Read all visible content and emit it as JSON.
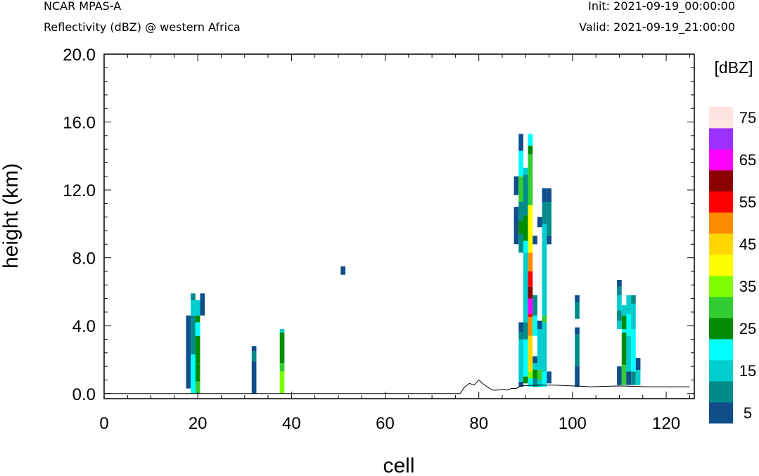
{
  "header": {
    "left_line1": "NCAR MPAS-A",
    "left_line2": "Reflectivity (dBZ) @ western Africa",
    "right_line1": "Init: 2021-09-19_00:00:00",
    "right_line2": "Valid: 2021-09-19_21:00:00"
  },
  "chart_data": {
    "type": "heatmap",
    "title": "Reflectivity (dBZ) @ western Africa",
    "xlabel": "cell",
    "ylabel": "height (km)",
    "xlim": [
      0,
      126
    ],
    "ylim": [
      -0.3,
      20.0
    ],
    "xticks": [
      0,
      20,
      40,
      60,
      80,
      100,
      120
    ],
    "xtick_labels": [
      "0",
      "20",
      "40",
      "60",
      "80",
      "100",
      "120"
    ],
    "yticks": [
      0,
      4,
      8,
      12,
      16,
      20
    ],
    "ytick_labels": [
      "0.0",
      "4.0",
      "8.0",
      "12.0",
      "16.0",
      "20.0"
    ],
    "colorbar": {
      "unit": "[dBZ]",
      "levels": [
        5,
        10,
        15,
        20,
        25,
        30,
        35,
        40,
        45,
        50,
        55,
        60,
        65,
        70,
        75
      ],
      "labels": [
        "5",
        "15",
        "25",
        "35",
        "45",
        "55",
        "65",
        "75"
      ],
      "colors": [
        "#104e8b",
        "#008b8b",
        "#00cdcd",
        "#00ffff",
        "#008b00",
        "#32cd32",
        "#7fff00",
        "#ffff00",
        "#ffd700",
        "#ff8c00",
        "#ff0000",
        "#8b0000",
        "#ff00ff",
        "#9b30ff",
        "#ffe4e1"
      ]
    },
    "terrain": [
      [
        0,
        0
      ],
      [
        76,
        0
      ],
      [
        77,
        0.4
      ],
      [
        78,
        0.6
      ],
      [
        79,
        0.5
      ],
      [
        80,
        0.8
      ],
      [
        81,
        0.55
      ],
      [
        82,
        0.35
      ],
      [
        83,
        0.2
      ],
      [
        84,
        0.2
      ],
      [
        85,
        0.25
      ],
      [
        86,
        0.2
      ],
      [
        87,
        0.3
      ],
      [
        88,
        0.3
      ],
      [
        89,
        0.45
      ],
      [
        92,
        0.5
      ],
      [
        96,
        0.5
      ],
      [
        100,
        0.45
      ],
      [
        104,
        0.4
      ],
      [
        110,
        0.45
      ],
      [
        116,
        0.4
      ],
      [
        120,
        0.4
      ],
      [
        125,
        0.4
      ]
    ],
    "cells": [
      {
        "x": 18,
        "segments": [
          [
            0,
            0.3,
            4.6,
            5.9
          ]
        ]
      },
      {
        "x": 19,
        "segments": [
          [
            3,
            0.0,
            2.3
          ],
          [
            1,
            2.3,
            4.6
          ],
          [
            2,
            4.6,
            5.5
          ],
          [
            1,
            5.5,
            5.9
          ]
        ]
      },
      {
        "x": 20,
        "segments": [
          [
            5,
            0.0,
            0.7
          ],
          [
            4,
            0.7,
            1.7
          ],
          [
            4,
            1.7,
            3.4
          ],
          [
            3,
            3.4,
            4.2
          ],
          [
            4,
            4.2,
            4.6
          ],
          [
            2,
            4.6,
            5.5
          ]
        ]
      },
      {
        "x": 21,
        "segments": [
          [
            0,
            4.6,
            5.9
          ]
        ]
      },
      {
        "x": 32,
        "segments": [
          [
            0,
            0.0,
            1.9
          ],
          [
            1,
            1.9,
            2.5
          ],
          [
            0,
            2.5,
            2.8
          ]
        ]
      },
      {
        "x": 38,
        "segments": [
          [
            6,
            0.0,
            1.3
          ],
          [
            5,
            1.3,
            1.8
          ],
          [
            4,
            1.8,
            3.6
          ],
          [
            2,
            3.6,
            3.8
          ]
        ]
      },
      {
        "x": 51,
        "segments": [
          [
            0,
            7.0,
            7.5
          ]
        ]
      },
      {
        "x": 88,
        "segments": [
          [
            0,
            8.8,
            11.0
          ],
          [
            0,
            11.7,
            12.8
          ]
        ]
      },
      {
        "x": 89,
        "segments": [
          [
            0,
            0.4,
            0.7
          ],
          [
            2,
            0.7,
            3.2
          ],
          [
            1,
            3.2,
            3.6
          ],
          [
            0,
            3.6,
            4.2
          ],
          [
            1,
            8.3,
            9.4
          ],
          [
            4,
            9.4,
            10.2
          ],
          [
            1,
            10.2,
            11.3
          ],
          [
            5,
            11.3,
            12.8
          ],
          [
            3,
            12.8,
            14.3
          ],
          [
            0,
            14.3,
            15.3
          ]
        ]
      },
      {
        "x": 90,
        "segments": [
          [
            4,
            0.6,
            1.0
          ],
          [
            3,
            1.0,
            3.2
          ],
          [
            1,
            3.2,
            4.2
          ],
          [
            2,
            4.2,
            8.3
          ],
          [
            3,
            8.3,
            9.0
          ],
          [
            4,
            9.0,
            10.5
          ],
          [
            1,
            10.5,
            12.9
          ],
          [
            2,
            12.9,
            13.3
          ]
        ]
      },
      {
        "x": 91,
        "segments": [
          [
            3,
            0.4,
            0.9
          ],
          [
            6,
            0.9,
            1.3
          ],
          [
            8,
            1.3,
            3.4
          ],
          [
            9,
            3.4,
            4.5
          ],
          [
            10,
            4.5,
            4.7
          ],
          [
            12,
            4.7,
            5.6
          ],
          [
            11,
            5.6,
            6.3
          ],
          [
            10,
            6.3,
            7.2
          ],
          [
            9,
            7.2,
            8.3
          ],
          [
            7,
            8.3,
            11.1
          ],
          [
            5,
            11.1,
            14.1
          ],
          [
            4,
            14.1,
            14.6
          ],
          [
            3,
            14.6,
            15.3
          ]
        ]
      },
      {
        "x": 92,
        "segments": [
          [
            1,
            0.4,
            0.9
          ],
          [
            4,
            0.9,
            1.4
          ],
          [
            2,
            1.4,
            1.8
          ],
          [
            0,
            1.8,
            2.2
          ],
          [
            3,
            3.4,
            4.6
          ],
          [
            1,
            4.6,
            5.8
          ],
          [
            0,
            8.8,
            9.3
          ]
        ]
      },
      {
        "x": 93,
        "segments": [
          [
            2,
            0.4,
            0.8
          ],
          [
            5,
            0.8,
            1.4
          ],
          [
            2,
            1.4,
            3.8
          ],
          [
            0,
            3.8,
            4.3
          ],
          [
            0,
            9.8,
            10.4
          ]
        ]
      },
      {
        "x": 94,
        "segments": [
          [
            3,
            0.4,
            1.3
          ],
          [
            2,
            1.3,
            4.2
          ],
          [
            5,
            4.2,
            4.6
          ],
          [
            2,
            4.6,
            9.3
          ],
          [
            2,
            9.3,
            10.0
          ],
          [
            1,
            10.0,
            11.3
          ],
          [
            0,
            11.3,
            12.1
          ]
        ]
      },
      {
        "x": 95,
        "segments": [
          [
            0,
            0.6,
            1.3
          ],
          [
            0,
            8.8,
            9.3
          ],
          [
            1,
            9.3,
            11.3
          ],
          [
            0,
            11.3,
            12.1
          ]
        ]
      },
      {
        "x": 101,
        "segments": [
          [
            0,
            0.4,
            1.6
          ],
          [
            1,
            1.6,
            3.5
          ],
          [
            0,
            3.5,
            3.9
          ],
          [
            1,
            4.4,
            5.4
          ],
          [
            0,
            5.4,
            5.8
          ]
        ]
      },
      {
        "x": 110,
        "segments": [
          [
            0,
            0.5,
            1.6
          ],
          [
            2,
            3.8,
            4.3
          ],
          [
            1,
            4.3,
            4.9
          ],
          [
            2,
            4.9,
            5.8
          ],
          [
            1,
            5.8,
            6.3
          ],
          [
            0,
            6.3,
            6.7
          ]
        ]
      },
      {
        "x": 111,
        "segments": [
          [
            5,
            0.5,
            1.7
          ],
          [
            4,
            1.7,
            3.6
          ],
          [
            3,
            3.6,
            3.8
          ],
          [
            4,
            3.8,
            4.6
          ],
          [
            2,
            4.6,
            5.2
          ]
        ]
      },
      {
        "x": 112,
        "segments": [
          [
            0,
            0.5,
            1.3
          ],
          [
            2,
            1.3,
            3.4
          ],
          [
            3,
            3.4,
            4.7
          ],
          [
            2,
            4.7,
            5.8
          ]
        ]
      },
      {
        "x": 113,
        "segments": [
          [
            1,
            0.5,
            1.3
          ],
          [
            3,
            1.3,
            3.8
          ],
          [
            2,
            3.8,
            5.3
          ],
          [
            1,
            5.3,
            5.8
          ]
        ]
      },
      {
        "x": 114,
        "segments": [
          [
            2,
            0.5,
            1.4
          ],
          [
            0,
            1.4,
            2.1
          ]
        ]
      }
    ]
  }
}
